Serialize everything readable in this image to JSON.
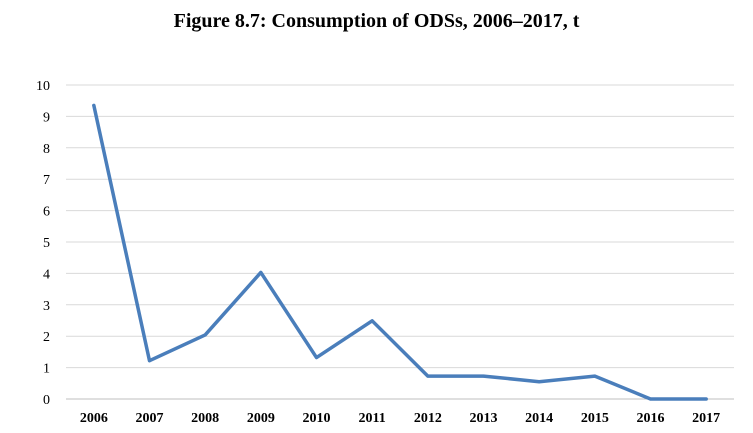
{
  "chart_data": {
    "type": "line",
    "title": "Figure 8.7: Consumption of ODSs, 2006–2017, t",
    "xlabel": "",
    "ylabel": "",
    "categories": [
      "2006",
      "2007",
      "2008",
      "2009",
      "2010",
      "2011",
      "2012",
      "2013",
      "2014",
      "2015",
      "2016",
      "2017"
    ],
    "series": [
      {
        "values": [
          9.35,
          1.22,
          2.04,
          4.03,
          1.32,
          2.49,
          0.73,
          0.73,
          0.55,
          0.73,
          0.0,
          0.0
        ],
        "color": "#4a7ebb"
      }
    ],
    "ylim": [
      0,
      10
    ],
    "yticks": [
      "0",
      "1",
      "2",
      "3",
      "4",
      "5",
      "6",
      "7",
      "8",
      "9",
      "10"
    ],
    "grid": "horizontal",
    "legend": "none"
  }
}
